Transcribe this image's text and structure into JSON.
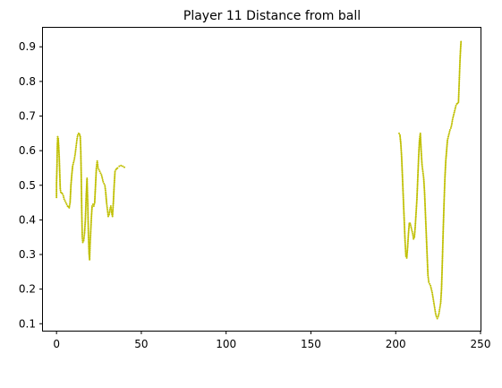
{
  "chart_data": {
    "type": "scatter",
    "title": "Player 11 Distance from ball",
    "xlabel": "",
    "ylabel": "",
    "xlim": [
      -8,
      250
    ],
    "ylim": [
      0.08,
      0.955
    ],
    "xticks": [
      0,
      50,
      100,
      150,
      200,
      250
    ],
    "yticks": [
      0.1,
      0.2,
      0.3,
      0.4,
      0.5,
      0.6,
      0.7,
      0.8,
      0.9
    ],
    "xtick_labels": [
      "0",
      "50",
      "100",
      "150",
      "200",
      "250"
    ],
    "ytick_labels": [
      "0.1",
      "0.2",
      "0.3",
      "0.4",
      "0.5",
      "0.6",
      "0.7",
      "0.8",
      "0.9"
    ],
    "grid": false,
    "marker_color": "#bfbf00",
    "series": [
      {
        "name": "early segment",
        "points": [
          [
            0,
            0.465
          ],
          [
            0,
            0.505
          ],
          [
            0.3,
            0.56
          ],
          [
            0.5,
            0.62
          ],
          [
            0.7,
            0.64
          ],
          [
            1.0,
            0.635
          ],
          [
            1.3,
            0.61
          ],
          [
            1.6,
            0.58
          ],
          [
            1.8,
            0.55
          ],
          [
            2.0,
            0.52
          ],
          [
            2.2,
            0.49
          ],
          [
            2.5,
            0.48
          ],
          [
            3.0,
            0.478
          ],
          [
            3.5,
            0.475
          ],
          [
            4.0,
            0.47
          ],
          [
            4.5,
            0.46
          ],
          [
            5.0,
            0.455
          ],
          [
            5.5,
            0.45
          ],
          [
            6.0,
            0.445
          ],
          [
            6.5,
            0.44
          ],
          [
            7.0,
            0.438
          ],
          [
            7.5,
            0.435
          ],
          [
            8.0,
            0.45
          ],
          [
            8.5,
            0.5
          ],
          [
            9.0,
            0.53
          ],
          [
            9.5,
            0.555
          ],
          [
            10.0,
            0.565
          ],
          [
            10.5,
            0.575
          ],
          [
            11.0,
            0.59
          ],
          [
            11.5,
            0.61
          ],
          [
            12.0,
            0.63
          ],
          [
            12.5,
            0.645
          ],
          [
            13.0,
            0.65
          ],
          [
            13.5,
            0.648
          ],
          [
            14.0,
            0.64
          ],
          [
            14.3,
            0.6
          ],
          [
            14.6,
            0.52
          ],
          [
            14.9,
            0.42
          ],
          [
            15.2,
            0.35
          ],
          [
            15.5,
            0.335
          ],
          [
            16.0,
            0.34
          ],
          [
            16.5,
            0.36
          ],
          [
            17.0,
            0.4
          ],
          [
            17.5,
            0.47
          ],
          [
            18.0,
            0.52
          ],
          [
            18.4,
            0.45
          ],
          [
            18.8,
            0.36
          ],
          [
            19.2,
            0.3
          ],
          [
            19.5,
            0.285
          ],
          [
            19.8,
            0.33
          ],
          [
            20.2,
            0.37
          ],
          [
            20.6,
            0.41
          ],
          [
            21.0,
            0.44
          ],
          [
            21.5,
            0.445
          ],
          [
            22.0,
            0.44
          ],
          [
            22.5,
            0.45
          ],
          [
            23.0,
            0.5
          ],
          [
            23.5,
            0.55
          ],
          [
            24.0,
            0.57
          ],
          [
            24.5,
            0.55
          ],
          [
            25.0,
            0.545
          ],
          [
            25.5,
            0.54
          ],
          [
            26.0,
            0.535
          ],
          [
            26.5,
            0.53
          ],
          [
            27.0,
            0.52
          ],
          [
            27.5,
            0.51
          ],
          [
            28.0,
            0.505
          ],
          [
            28.5,
            0.5
          ],
          [
            29.0,
            0.48
          ],
          [
            29.5,
            0.45
          ],
          [
            30.0,
            0.43
          ],
          [
            30.5,
            0.41
          ],
          [
            31.0,
            0.415
          ],
          [
            31.5,
            0.43
          ],
          [
            32.0,
            0.44
          ],
          [
            32.5,
            0.42
          ],
          [
            33.0,
            0.41
          ],
          [
            33.5,
            0.45
          ],
          [
            34.0,
            0.5
          ],
          [
            34.5,
            0.54
          ],
          [
            35.0,
            0.545
          ],
          [
            35.5,
            0.548
          ],
          [
            36.0,
            0.55
          ],
          [
            37.0,
            0.555
          ],
          [
            38.0,
            0.557
          ],
          [
            39.0,
            0.555
          ],
          [
            40.0,
            0.552
          ]
        ]
      },
      {
        "name": "late segment",
        "points": [
          [
            202.0,
            0.65
          ],
          [
            202.5,
            0.645
          ],
          [
            203.0,
            0.62
          ],
          [
            203.5,
            0.58
          ],
          [
            204.0,
            0.52
          ],
          [
            204.5,
            0.46
          ],
          [
            205.0,
            0.4
          ],
          [
            205.5,
            0.34
          ],
          [
            206.0,
            0.295
          ],
          [
            206.5,
            0.29
          ],
          [
            207.0,
            0.32
          ],
          [
            207.5,
            0.36
          ],
          [
            208.0,
            0.39
          ],
          [
            208.5,
            0.39
          ],
          [
            209.0,
            0.38
          ],
          [
            209.5,
            0.37
          ],
          [
            210.0,
            0.36
          ],
          [
            210.5,
            0.345
          ],
          [
            211.0,
            0.35
          ],
          [
            211.5,
            0.38
          ],
          [
            212.0,
            0.42
          ],
          [
            212.5,
            0.46
          ],
          [
            213.0,
            0.52
          ],
          [
            213.5,
            0.58
          ],
          [
            214.0,
            0.63
          ],
          [
            214.5,
            0.65
          ],
          [
            215.0,
            0.6
          ],
          [
            215.5,
            0.56
          ],
          [
            216.0,
            0.54
          ],
          [
            216.5,
            0.52
          ],
          [
            217.0,
            0.48
          ],
          [
            217.5,
            0.42
          ],
          [
            218.0,
            0.36
          ],
          [
            218.5,
            0.3
          ],
          [
            219.0,
            0.24
          ],
          [
            219.5,
            0.22
          ],
          [
            220.0,
            0.215
          ],
          [
            220.5,
            0.21
          ],
          [
            221.0,
            0.2
          ],
          [
            221.5,
            0.19
          ],
          [
            222.0,
            0.175
          ],
          [
            222.5,
            0.16
          ],
          [
            223.0,
            0.145
          ],
          [
            223.5,
            0.13
          ],
          [
            224.0,
            0.12
          ],
          [
            224.5,
            0.115
          ],
          [
            225.0,
            0.12
          ],
          [
            225.5,
            0.13
          ],
          [
            226.0,
            0.145
          ],
          [
            226.5,
            0.16
          ],
          [
            227.0,
            0.2
          ],
          [
            227.5,
            0.28
          ],
          [
            228.0,
            0.37
          ],
          [
            228.5,
            0.45
          ],
          [
            229.0,
            0.52
          ],
          [
            229.5,
            0.57
          ],
          [
            230.0,
            0.6
          ],
          [
            230.5,
            0.63
          ],
          [
            231.0,
            0.64
          ],
          [
            231.5,
            0.65
          ],
          [
            232.0,
            0.66
          ],
          [
            232.5,
            0.665
          ],
          [
            233.0,
            0.675
          ],
          [
            233.5,
            0.69
          ],
          [
            234.0,
            0.7
          ],
          [
            234.5,
            0.71
          ],
          [
            235.0,
            0.72
          ],
          [
            235.5,
            0.73
          ],
          [
            236.0,
            0.735
          ],
          [
            236.5,
            0.737
          ],
          [
            237.0,
            0.74
          ],
          [
            237.3,
            0.78
          ],
          [
            237.6,
            0.82
          ],
          [
            237.9,
            0.86
          ],
          [
            238.2,
            0.89
          ],
          [
            238.5,
            0.915
          ]
        ]
      }
    ]
  }
}
